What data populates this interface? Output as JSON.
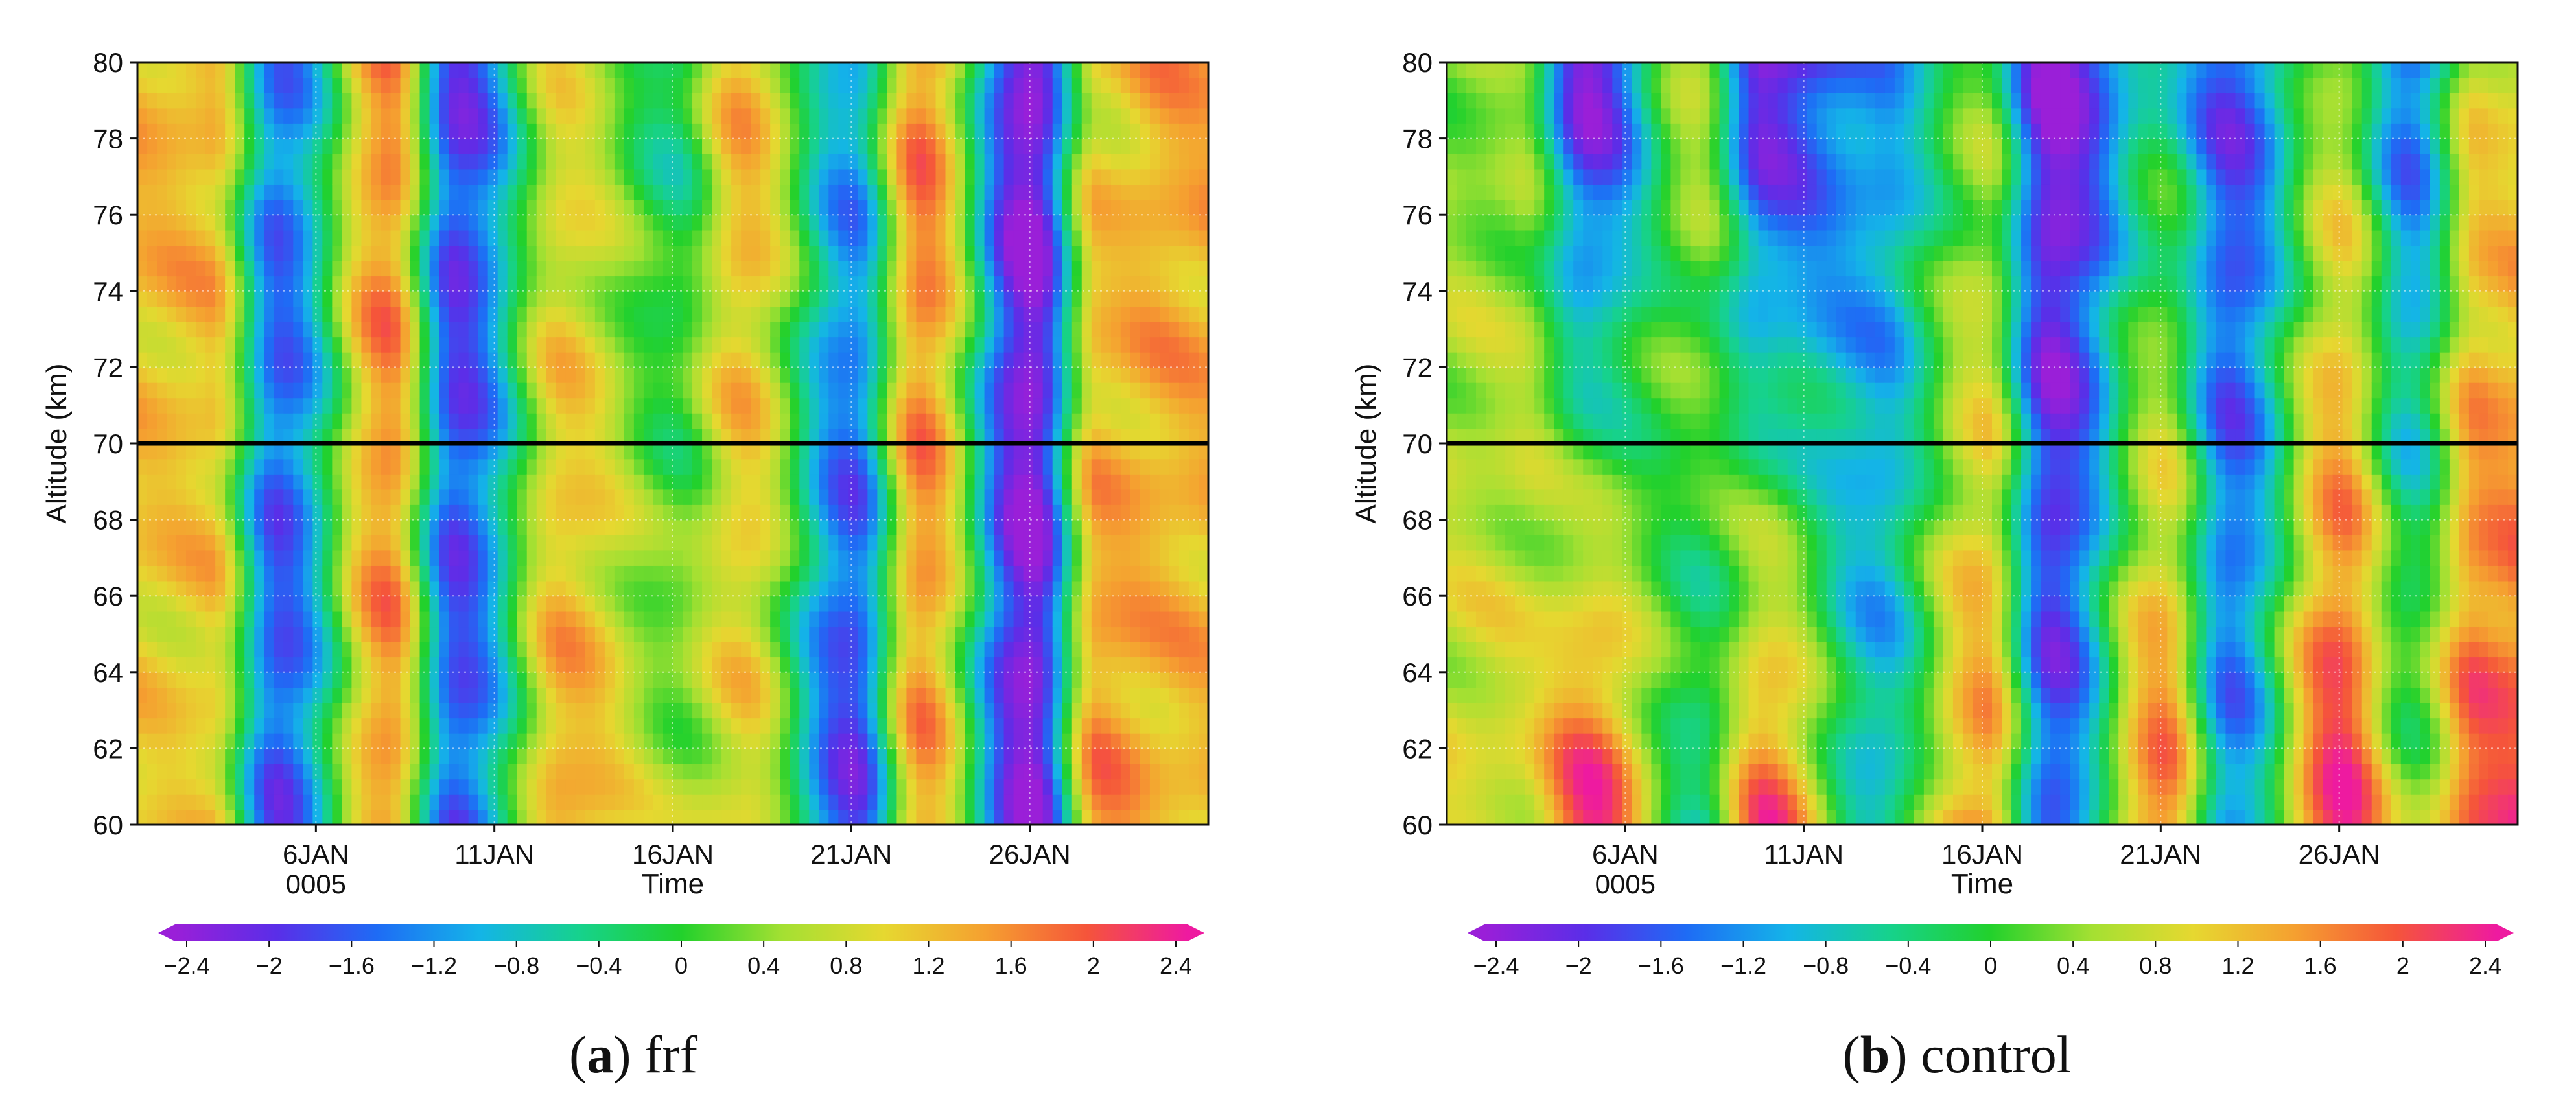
{
  "figure": {
    "panels": [
      {
        "letter": "a",
        "name": "frf"
      },
      {
        "letter": "b",
        "name": "control"
      }
    ]
  },
  "chart_data": [
    {
      "type": "heatmap",
      "panel_label": "(a) frf",
      "xlabel": "Time",
      "ylabel": "Altitude (km)",
      "x_tick_labels": [
        "6JAN",
        "11JAN",
        "16JAN",
        "21JAN",
        "26JAN"
      ],
      "x_tick_sublabel": "0005",
      "x_range_days": [
        1,
        31
      ],
      "ylim": [
        60,
        80
      ],
      "y_ticks": [
        60,
        62,
        64,
        66,
        68,
        70,
        72,
        74,
        76,
        78,
        80
      ],
      "reference_line_altitude": 70,
      "grid": true,
      "colorbar": {
        "ticks": [
          "-2.4",
          "-2",
          "-1.6",
          "-1.2",
          "-0.8",
          "-0.4",
          "0",
          "0.4",
          "0.8",
          "1.2",
          "1.6",
          "2",
          "2.4"
        ],
        "range": [
          -2.4,
          2.4
        ],
        "colors": [
          "#9a1fd8",
          "#5a2ee8",
          "#1e6cf5",
          "#14b4e8",
          "#16d28c",
          "#22d12c",
          "#a4e032",
          "#e6d830",
          "#f5a030",
          "#f5553a",
          "#ee1aa0"
        ]
      },
      "field_description_days": [
        3,
        5,
        8,
        10,
        13,
        16,
        18,
        21,
        23,
        26,
        28,
        30
      ],
      "field_values_lower": [
        1.0,
        -1.7,
        1.5,
        -1.6,
        1.4,
        0.5,
        0.9,
        -1.9,
        1.4,
        -2.3,
        1.6,
        1.2
      ],
      "field_values_upper": [
        1.3,
        -1.4,
        1.6,
        -1.9,
        0.8,
        -0.4,
        1.3,
        -1.0,
        1.7,
        -2.4,
        1.0,
        1.4
      ]
    },
    {
      "type": "heatmap",
      "panel_label": "(b) control",
      "xlabel": "Time",
      "ylabel": "Altitude (km)",
      "x_tick_labels": [
        "6JAN",
        "11JAN",
        "16JAN",
        "21JAN",
        "26JAN"
      ],
      "x_tick_sublabel": "0005",
      "x_range_days": [
        1,
        31
      ],
      "ylim": [
        60,
        80
      ],
      "y_ticks": [
        60,
        62,
        64,
        66,
        68,
        70,
        72,
        74,
        76,
        78,
        80
      ],
      "reference_line_altitude": 70,
      "grid": true,
      "colorbar": {
        "ticks": [
          "-2.4",
          "-2",
          "-1.6",
          "-1.2",
          "-0.8",
          "-0.4",
          "0",
          "0.4",
          "0.8",
          "1.2",
          "1.6",
          "2",
          "2.4"
        ],
        "range": [
          -2.4,
          2.4
        ],
        "colors": [
          "#9a1fd8",
          "#5a2ee8",
          "#1e6cf5",
          "#14b4e8",
          "#16d28c",
          "#22d12c",
          "#a4e032",
          "#e6d830",
          "#f5a030",
          "#f5553a",
          "#ee1aa0"
        ]
      },
      "field_description_days": [
        3,
        5,
        8,
        10,
        13,
        16,
        18,
        21,
        23,
        26,
        28,
        30
      ],
      "field_values_lower": [
        0.9,
        2.3,
        -0.5,
        2.0,
        -0.8,
        1.6,
        -1.6,
        1.9,
        -1.2,
        2.3,
        0.4,
        2.0
      ],
      "field_values_upper": [
        0.3,
        -2.4,
        0.6,
        -2.4,
        -1.2,
        0.2,
        -2.4,
        -0.6,
        -1.8,
        0.4,
        -1.6,
        0.9
      ]
    }
  ]
}
